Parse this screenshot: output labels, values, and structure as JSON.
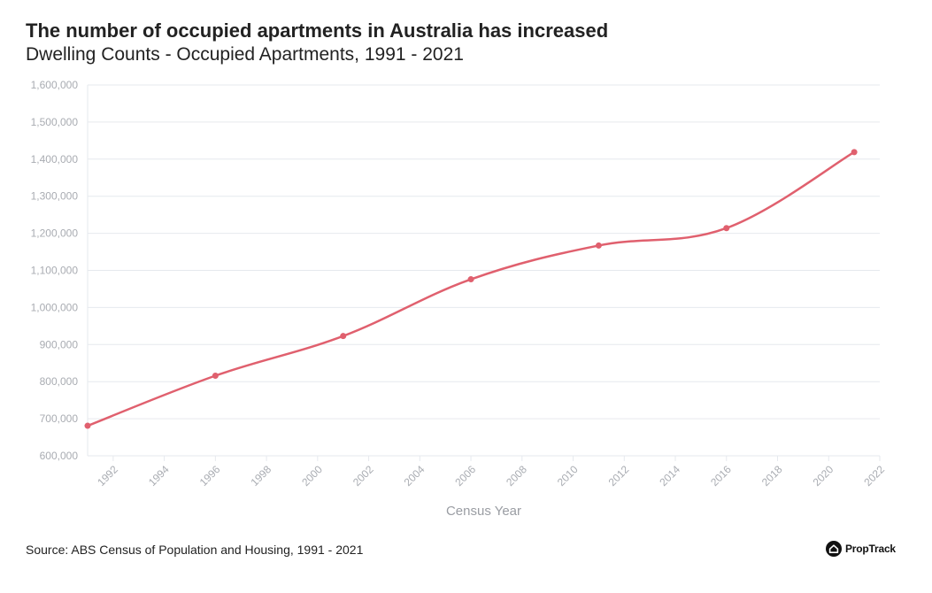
{
  "header": {
    "title": "The number of occupied apartments in Australia has increased",
    "subtitle": "Dwelling Counts - Occupied Apartments, 1991 - 2021"
  },
  "footer": {
    "source": "Source: ABS Census of Population and Housing, 1991 - 2021",
    "brand": "PropTrack",
    "brand_icon": "proptrack-house-logo-icon"
  },
  "colors": {
    "line": "#e0606e",
    "grid": "#e6e9ee",
    "tick_text": "#a9acb2",
    "axis_label": "#9a9da3",
    "text": "#222222"
  },
  "chart_data": {
    "type": "line",
    "title": "The number of occupied apartments in Australia has increased",
    "subtitle": "Dwelling Counts - Occupied Apartments, 1991 - 2021",
    "xlabel": "Census Year",
    "ylabel": "",
    "xlim": [
      1991,
      2022
    ],
    "ylim": [
      600000,
      1600000
    ],
    "x_ticks": [
      1992,
      1994,
      1996,
      1998,
      2000,
      2002,
      2004,
      2006,
      2008,
      2010,
      2012,
      2014,
      2016,
      2018,
      2020,
      2022
    ],
    "y_ticks": [
      600000,
      700000,
      800000,
      900000,
      1000000,
      1100000,
      1200000,
      1300000,
      1400000,
      1500000,
      1600000
    ],
    "y_tick_labels": [
      "600,000",
      "700,000",
      "800,000",
      "900,000",
      "1,000,000",
      "1,100,000",
      "1,200,000",
      "1,300,000",
      "1,400,000",
      "1,500,000",
      "1,600,000"
    ],
    "grid": true,
    "legend": "none",
    "series": [
      {
        "x": [
          1991,
          1996,
          2001,
          2006,
          2011,
          2016,
          2021
        ],
        "values": [
          681000,
          816000,
          923000,
          1076000,
          1167000,
          1214000,
          1419000
        ]
      }
    ]
  }
}
